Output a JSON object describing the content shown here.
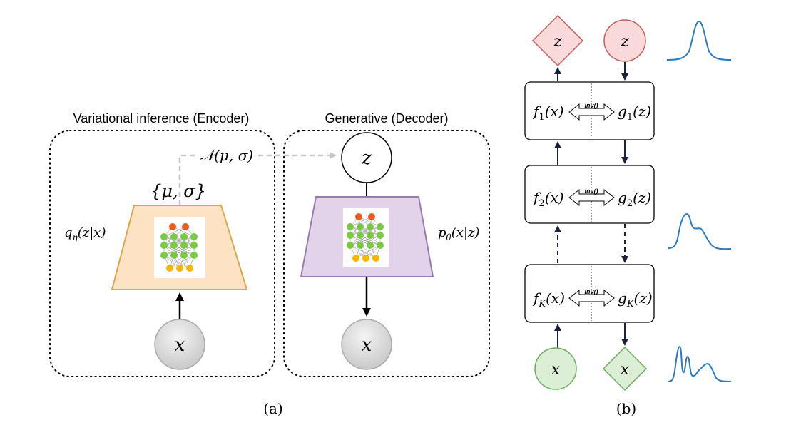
{
  "panel_a": {
    "caption": "(a)",
    "encoder": {
      "title": "Variational inference (Encoder)",
      "distribution_label": "q",
      "distribution_sub": "η",
      "distribution_arg": "(z|x)",
      "params_label": "{μ, σ}",
      "sample_label": "𝒩(μ, σ)",
      "input_label": "x",
      "trapezoid_color": "#fde2c4",
      "trapezoid_border": "#d9a64a"
    },
    "decoder": {
      "title": "Generative (Decoder)",
      "distribution_label": "p",
      "distribution_sub": "θ",
      "distribution_arg": "(x|z)",
      "latent_label": "z",
      "output_label": "x",
      "trapezoid_color": "#e2d3ea",
      "trapezoid_border": "#9a7aab"
    }
  },
  "panel_b": {
    "caption": "(b)",
    "top_outputs": {
      "diamond_label": "z",
      "circle_label": "z"
    },
    "bottom_inputs": {
      "circle_label": "x",
      "diamond_label": "x"
    },
    "inv_label": "inv()",
    "blocks": [
      {
        "f_base": "f",
        "f_sub": "1",
        "f_arg": "(x)",
        "g_base": "g",
        "g_sub": "1",
        "g_arg": "(z)"
      },
      {
        "f_base": "f",
        "f_sub": "2",
        "f_arg": "(x)",
        "g_base": "g",
        "g_sub": "2",
        "g_arg": "(z)"
      },
      {
        "f_base": "f",
        "f_sub": "K",
        "f_arg": "(x)",
        "g_base": "g",
        "g_sub": "K",
        "g_arg": "(z)"
      }
    ],
    "colors": {
      "red_fill": "#f9d9d9",
      "red_border": "#c65b5b",
      "green_fill": "#dcefd6",
      "green_border": "#6aab5d",
      "density_curve": "#2a7bbf",
      "arrow": "#1a2040"
    }
  },
  "network_icon_colors": {
    "top": "#f05a1a",
    "middle": "#7ac943",
    "bottom": "#f6b800"
  }
}
